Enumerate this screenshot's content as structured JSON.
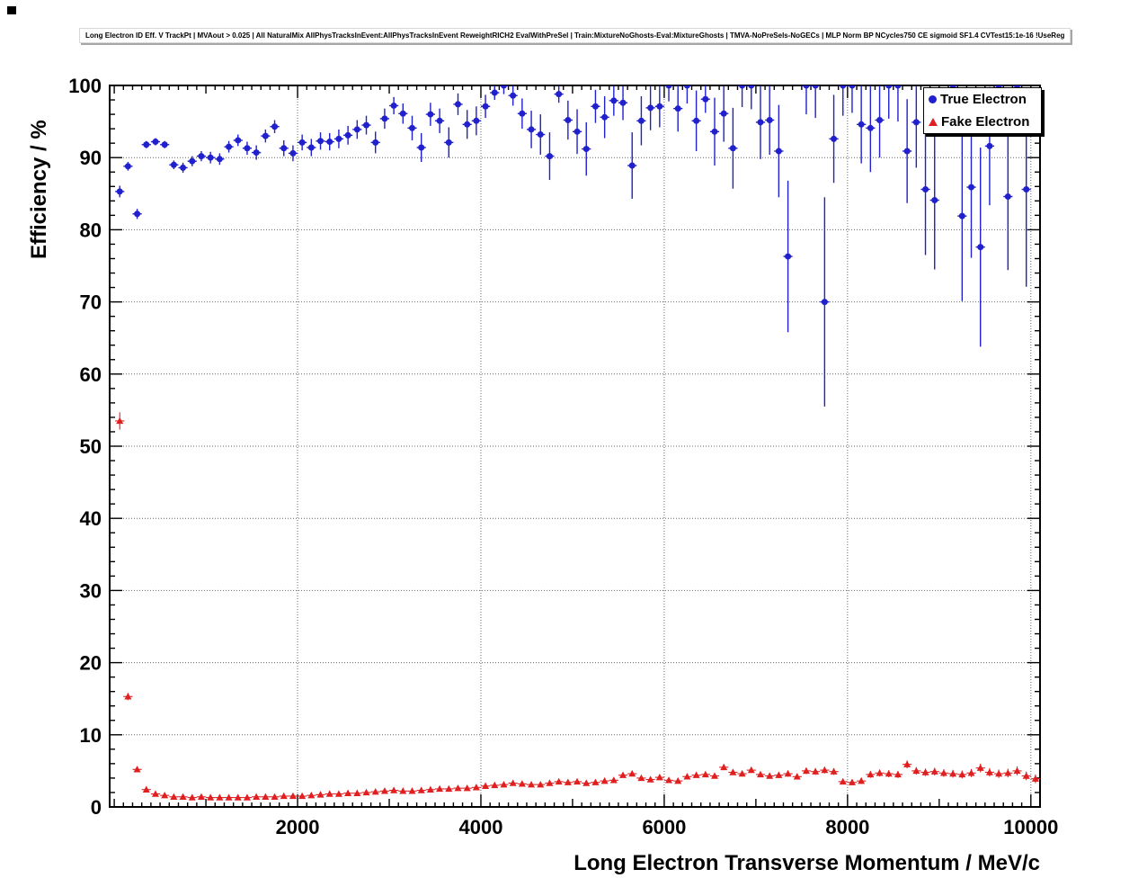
{
  "title": "Long Electron ID Eff. V TrackPt | MVAout > 0.025 | All NaturalMix AllPhysTracksInEvent:AllPhysTracksInEvent ReweightRICH2 EvalWithPreSel | Train:MixtureNoGhosts-Eval:MixtureGhosts | TMVA-NoPreSels-NoGECs | MLP Norm BP NCycles750 CE sigmoid SF1.4 CVTest15:1e-16 !UseReg",
  "legend": {
    "items": [
      {
        "label": "True Electron",
        "marker": "circle",
        "color": "#2020cc"
      },
      {
        "label": "Fake Electron",
        "marker": "triangle",
        "color": "#e02020"
      }
    ]
  },
  "chart_data": {
    "type": "scatter",
    "title": "Long Electron ID Eff. V TrackPt",
    "xlabel": "Long Electron Transverse Momentum / MeV/c",
    "ylabel": "Efficiency / %",
    "xlim": [
      -50,
      10100
    ],
    "ylim": [
      0,
      100
    ],
    "x_major_ticks": [
      2000,
      4000,
      6000,
      8000,
      10000
    ],
    "y_major_ticks": [
      0,
      10,
      20,
      30,
      40,
      50,
      60,
      70,
      80,
      90,
      100
    ],
    "x_minor_step": 100,
    "y_minor_step": 2,
    "grid": true,
    "grid_style": "dotted",
    "legend_position": "top-right",
    "x_bin_half_width": 50,
    "series": [
      {
        "name": "True Electron",
        "marker": "circle",
        "color": "#2020cc",
        "points": [
          [
            60,
            85.3,
            0.8
          ],
          [
            150,
            88.8,
            0.6
          ],
          [
            250,
            82.2,
            0.7
          ],
          [
            350,
            91.8,
            0.5
          ],
          [
            450,
            92.2,
            0.5
          ],
          [
            550,
            91.8,
            0.5
          ],
          [
            650,
            89.0,
            0.6
          ],
          [
            750,
            88.6,
            0.7
          ],
          [
            850,
            89.5,
            0.7
          ],
          [
            950,
            90.2,
            0.7
          ],
          [
            1050,
            90.0,
            0.8
          ],
          [
            1150,
            89.8,
            0.8
          ],
          [
            1250,
            91.5,
            0.8
          ],
          [
            1350,
            92.4,
            0.8
          ],
          [
            1450,
            91.3,
            0.9
          ],
          [
            1550,
            90.7,
            1.0
          ],
          [
            1650,
            93.0,
            0.9
          ],
          [
            1750,
            94.3,
            0.9
          ],
          [
            1850,
            91.3,
            1.1
          ],
          [
            1950,
            90.6,
            1.1
          ],
          [
            2050,
            92.1,
            1.1
          ],
          [
            2150,
            91.4,
            1.2
          ],
          [
            2250,
            92.3,
            1.2
          ],
          [
            2350,
            92.2,
            1.2
          ],
          [
            2450,
            92.6,
            1.3
          ],
          [
            2550,
            93.1,
            1.3
          ],
          [
            2650,
            93.9,
            1.3
          ],
          [
            2750,
            94.5,
            1.3
          ],
          [
            2850,
            92.1,
            1.5
          ],
          [
            2950,
            95.4,
            1.4
          ],
          [
            3050,
            97.2,
            1.2
          ],
          [
            3150,
            96.1,
            1.4
          ],
          [
            3250,
            94.1,
            1.7
          ],
          [
            3350,
            91.4,
            2.0
          ],
          [
            3450,
            96.0,
            1.6
          ],
          [
            3550,
            95.1,
            1.7
          ],
          [
            3650,
            92.1,
            2.1
          ],
          [
            3750,
            97.4,
            1.5
          ],
          [
            3850,
            94.6,
            2.0
          ],
          [
            3950,
            95.1,
            2.0
          ],
          [
            4050,
            97.1,
            1.6
          ],
          [
            4150,
            99.0,
            1.0
          ],
          [
            4250,
            100,
            1.2
          ],
          [
            4350,
            98.6,
            1.4
          ],
          [
            4450,
            96.1,
            2.1
          ],
          [
            4550,
            93.9,
            2.6
          ],
          [
            4650,
            93.2,
            2.8
          ],
          [
            4750,
            90.2,
            3.3
          ],
          [
            4850,
            98.8,
            1.2
          ],
          [
            4950,
            95.2,
            2.7
          ],
          [
            5050,
            93.6,
            3.1
          ],
          [
            5150,
            91.2,
            3.7
          ],
          [
            5250,
            97.1,
            2.3
          ],
          [
            5350,
            95.6,
            2.9
          ],
          [
            5450,
            97.9,
            2.1
          ],
          [
            5550,
            97.6,
            2.4
          ],
          [
            5650,
            88.9,
            4.6
          ],
          [
            5750,
            95.1,
            3.4
          ],
          [
            5850,
            96.9,
            3.1
          ],
          [
            5950,
            97.1,
            2.9
          ],
          [
            6050,
            100,
            2.2
          ],
          [
            6150,
            96.8,
            3.2
          ],
          [
            6250,
            100,
            2.5
          ],
          [
            6350,
            95.1,
            4.2
          ],
          [
            6450,
            98.1,
            1.9
          ],
          [
            6550,
            93.6,
            4.7
          ],
          [
            6650,
            96.1,
            3.9
          ],
          [
            6750,
            91.3,
            5.6
          ],
          [
            6850,
            100,
            3.0
          ],
          [
            6950,
            100,
            3.3
          ],
          [
            7050,
            94.9,
            5.1
          ],
          [
            7150,
            95.2,
            4.8
          ],
          [
            7250,
            90.9,
            6.4
          ],
          [
            7350,
            76.3,
            10.5
          ],
          [
            7550,
            100,
            4.0
          ],
          [
            7650,
            100,
            4.5
          ],
          [
            7750,
            70.0,
            14.5
          ],
          [
            7850,
            92.6,
            6.1
          ],
          [
            7950,
            100,
            4.2
          ],
          [
            8050,
            100,
            3.8
          ],
          [
            8150,
            94.6,
            5.4
          ],
          [
            8250,
            94.1,
            6.1
          ],
          [
            8350,
            95.2,
            5.2
          ],
          [
            8450,
            100,
            4.6
          ],
          [
            8550,
            100,
            5.0
          ],
          [
            8650,
            90.9,
            7.2
          ],
          [
            8750,
            94.9,
            6.3
          ],
          [
            8850,
            85.6,
            9.1
          ],
          [
            8950,
            84.1,
            9.6
          ],
          [
            9150,
            100,
            5.5
          ],
          [
            9250,
            81.9,
            11.8
          ],
          [
            9350,
            85.9,
            9.8
          ],
          [
            9450,
            77.6,
            13.8
          ],
          [
            9550,
            91.6,
            8.2
          ],
          [
            9650,
            100,
            6.0
          ],
          [
            9750,
            84.6,
            10.2
          ],
          [
            9850,
            100,
            6.5
          ],
          [
            9950,
            85.6,
            13.5
          ]
        ]
      },
      {
        "name": "Fake Electron",
        "marker": "triangle",
        "color": "#e02020",
        "points": [
          [
            60,
            53.5,
            1.2
          ],
          [
            150,
            15.3,
            0.5
          ],
          [
            250,
            5.2,
            0.3
          ],
          [
            350,
            2.4,
            0.2
          ],
          [
            450,
            1.8,
            0.15
          ],
          [
            550,
            1.6,
            0.12
          ],
          [
            650,
            1.4,
            0.1
          ],
          [
            750,
            1.4,
            0.1
          ],
          [
            850,
            1.3,
            0.1
          ],
          [
            950,
            1.4,
            0.1
          ],
          [
            1050,
            1.3,
            0.1
          ],
          [
            1150,
            1.3,
            0.1
          ],
          [
            1250,
            1.3,
            0.1
          ],
          [
            1350,
            1.3,
            0.1
          ],
          [
            1450,
            1.3,
            0.1
          ],
          [
            1550,
            1.4,
            0.1
          ],
          [
            1650,
            1.4,
            0.1
          ],
          [
            1750,
            1.4,
            0.1
          ],
          [
            1850,
            1.5,
            0.1
          ],
          [
            1950,
            1.5,
            0.1
          ],
          [
            2050,
            1.5,
            0.1
          ],
          [
            2150,
            1.6,
            0.1
          ],
          [
            2250,
            1.7,
            0.1
          ],
          [
            2350,
            1.8,
            0.12
          ],
          [
            2450,
            1.8,
            0.12
          ],
          [
            2550,
            1.9,
            0.12
          ],
          [
            2650,
            1.9,
            0.12
          ],
          [
            2750,
            2.0,
            0.13
          ],
          [
            2850,
            2.1,
            0.13
          ],
          [
            2950,
            2.2,
            0.14
          ],
          [
            3050,
            2.3,
            0.14
          ],
          [
            3150,
            2.2,
            0.14
          ],
          [
            3250,
            2.2,
            0.15
          ],
          [
            3350,
            2.3,
            0.15
          ],
          [
            3450,
            2.4,
            0.15
          ],
          [
            3550,
            2.5,
            0.16
          ],
          [
            3650,
            2.5,
            0.16
          ],
          [
            3750,
            2.6,
            0.17
          ],
          [
            3850,
            2.6,
            0.17
          ],
          [
            3950,
            2.7,
            0.18
          ],
          [
            4050,
            2.9,
            0.18
          ],
          [
            4150,
            3.0,
            0.19
          ],
          [
            4250,
            3.1,
            0.2
          ],
          [
            4350,
            3.3,
            0.2
          ],
          [
            4450,
            3.2,
            0.2
          ],
          [
            4550,
            3.1,
            0.2
          ],
          [
            4650,
            3.1,
            0.21
          ],
          [
            4750,
            3.3,
            0.22
          ],
          [
            4850,
            3.5,
            0.23
          ],
          [
            4950,
            3.4,
            0.23
          ],
          [
            5050,
            3.5,
            0.24
          ],
          [
            5150,
            3.3,
            0.24
          ],
          [
            5250,
            3.4,
            0.25
          ],
          [
            5350,
            3.6,
            0.26
          ],
          [
            5450,
            3.7,
            0.27
          ],
          [
            5550,
            4.4,
            0.3
          ],
          [
            5650,
            4.6,
            0.31
          ],
          [
            5750,
            4.0,
            0.3
          ],
          [
            5850,
            3.8,
            0.3
          ],
          [
            5950,
            4.1,
            0.31
          ],
          [
            6050,
            3.7,
            0.3
          ],
          [
            6150,
            3.6,
            0.3
          ],
          [
            6250,
            4.2,
            0.33
          ],
          [
            6350,
            4.4,
            0.34
          ],
          [
            6450,
            4.5,
            0.35
          ],
          [
            6550,
            4.3,
            0.35
          ],
          [
            6650,
            5.5,
            0.4
          ],
          [
            6750,
            4.8,
            0.38
          ],
          [
            6850,
            4.6,
            0.38
          ],
          [
            6950,
            5.1,
            0.4
          ],
          [
            7050,
            4.5,
            0.39
          ],
          [
            7150,
            4.3,
            0.39
          ],
          [
            7250,
            4.4,
            0.4
          ],
          [
            7350,
            4.6,
            0.42
          ],
          [
            7450,
            4.2,
            0.41
          ],
          [
            7550,
            5.0,
            0.45
          ],
          [
            7650,
            4.9,
            0.45
          ],
          [
            7750,
            5.1,
            0.46
          ],
          [
            7850,
            4.9,
            0.46
          ],
          [
            7950,
            3.5,
            0.4
          ],
          [
            8050,
            3.4,
            0.4
          ],
          [
            8150,
            3.6,
            0.42
          ],
          [
            8250,
            4.5,
            0.47
          ],
          [
            8350,
            4.7,
            0.48
          ],
          [
            8450,
            4.6,
            0.48
          ],
          [
            8550,
            4.5,
            0.49
          ],
          [
            8650,
            5.9,
            0.55
          ],
          [
            8750,
            5.0,
            0.52
          ],
          [
            8850,
            4.8,
            0.52
          ],
          [
            8950,
            4.9,
            0.53
          ],
          [
            9050,
            4.7,
            0.53
          ],
          [
            9150,
            4.6,
            0.54
          ],
          [
            9250,
            4.5,
            0.54
          ],
          [
            9350,
            4.7,
            0.56
          ],
          [
            9450,
            5.4,
            0.6
          ],
          [
            9550,
            4.8,
            0.58
          ],
          [
            9650,
            4.6,
            0.58
          ],
          [
            9750,
            4.7,
            0.6
          ],
          [
            9850,
            5.0,
            0.62
          ],
          [
            9950,
            4.3,
            0.6
          ],
          [
            10050,
            3.9,
            0.6
          ]
        ]
      }
    ]
  }
}
